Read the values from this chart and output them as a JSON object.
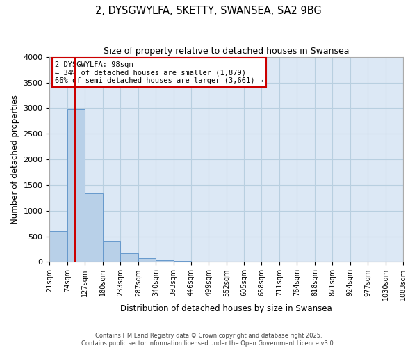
{
  "title": "2, DYSGWYLFA, SKETTY, SWANSEA, SA2 9BG",
  "subtitle": "Size of property relative to detached houses in Swansea",
  "xlabel": "Distribution of detached houses by size in Swansea",
  "ylabel": "Number of detached properties",
  "bar_edges": [
    21,
    74,
    127,
    180,
    233,
    287,
    340,
    393,
    446,
    499,
    552,
    605,
    658,
    711,
    764,
    818,
    871,
    924,
    977,
    1030,
    1083
  ],
  "bar_values": [
    600,
    2980,
    1330,
    420,
    170,
    80,
    30,
    20,
    5,
    2,
    0,
    0,
    0,
    0,
    0,
    0,
    0,
    0,
    0,
    0
  ],
  "bar_color": "#b8d0e8",
  "bar_edge_color": "#6699cc",
  "vline_x": 98,
  "vline_color": "#cc0000",
  "ylim": [
    0,
    4000
  ],
  "yticks": [
    0,
    500,
    1000,
    1500,
    2000,
    2500,
    3000,
    3500,
    4000
  ],
  "background_color": "#ffffff",
  "plot_bg_color": "#dce8f5",
  "grid_color": "#b8cfe0",
  "annotation_title": "2 DYSGWYLFA: 98sqm",
  "annotation_line1": "← 34% of detached houses are smaller (1,879)",
  "annotation_line2": "66% of semi-detached houses are larger (3,661) →",
  "annotation_box_color": "#ffffff",
  "annotation_box_edge_color": "#cc0000",
  "footer_line1": "Contains HM Land Registry data © Crown copyright and database right 2025.",
  "footer_line2": "Contains public sector information licensed under the Open Government Licence v3.0."
}
